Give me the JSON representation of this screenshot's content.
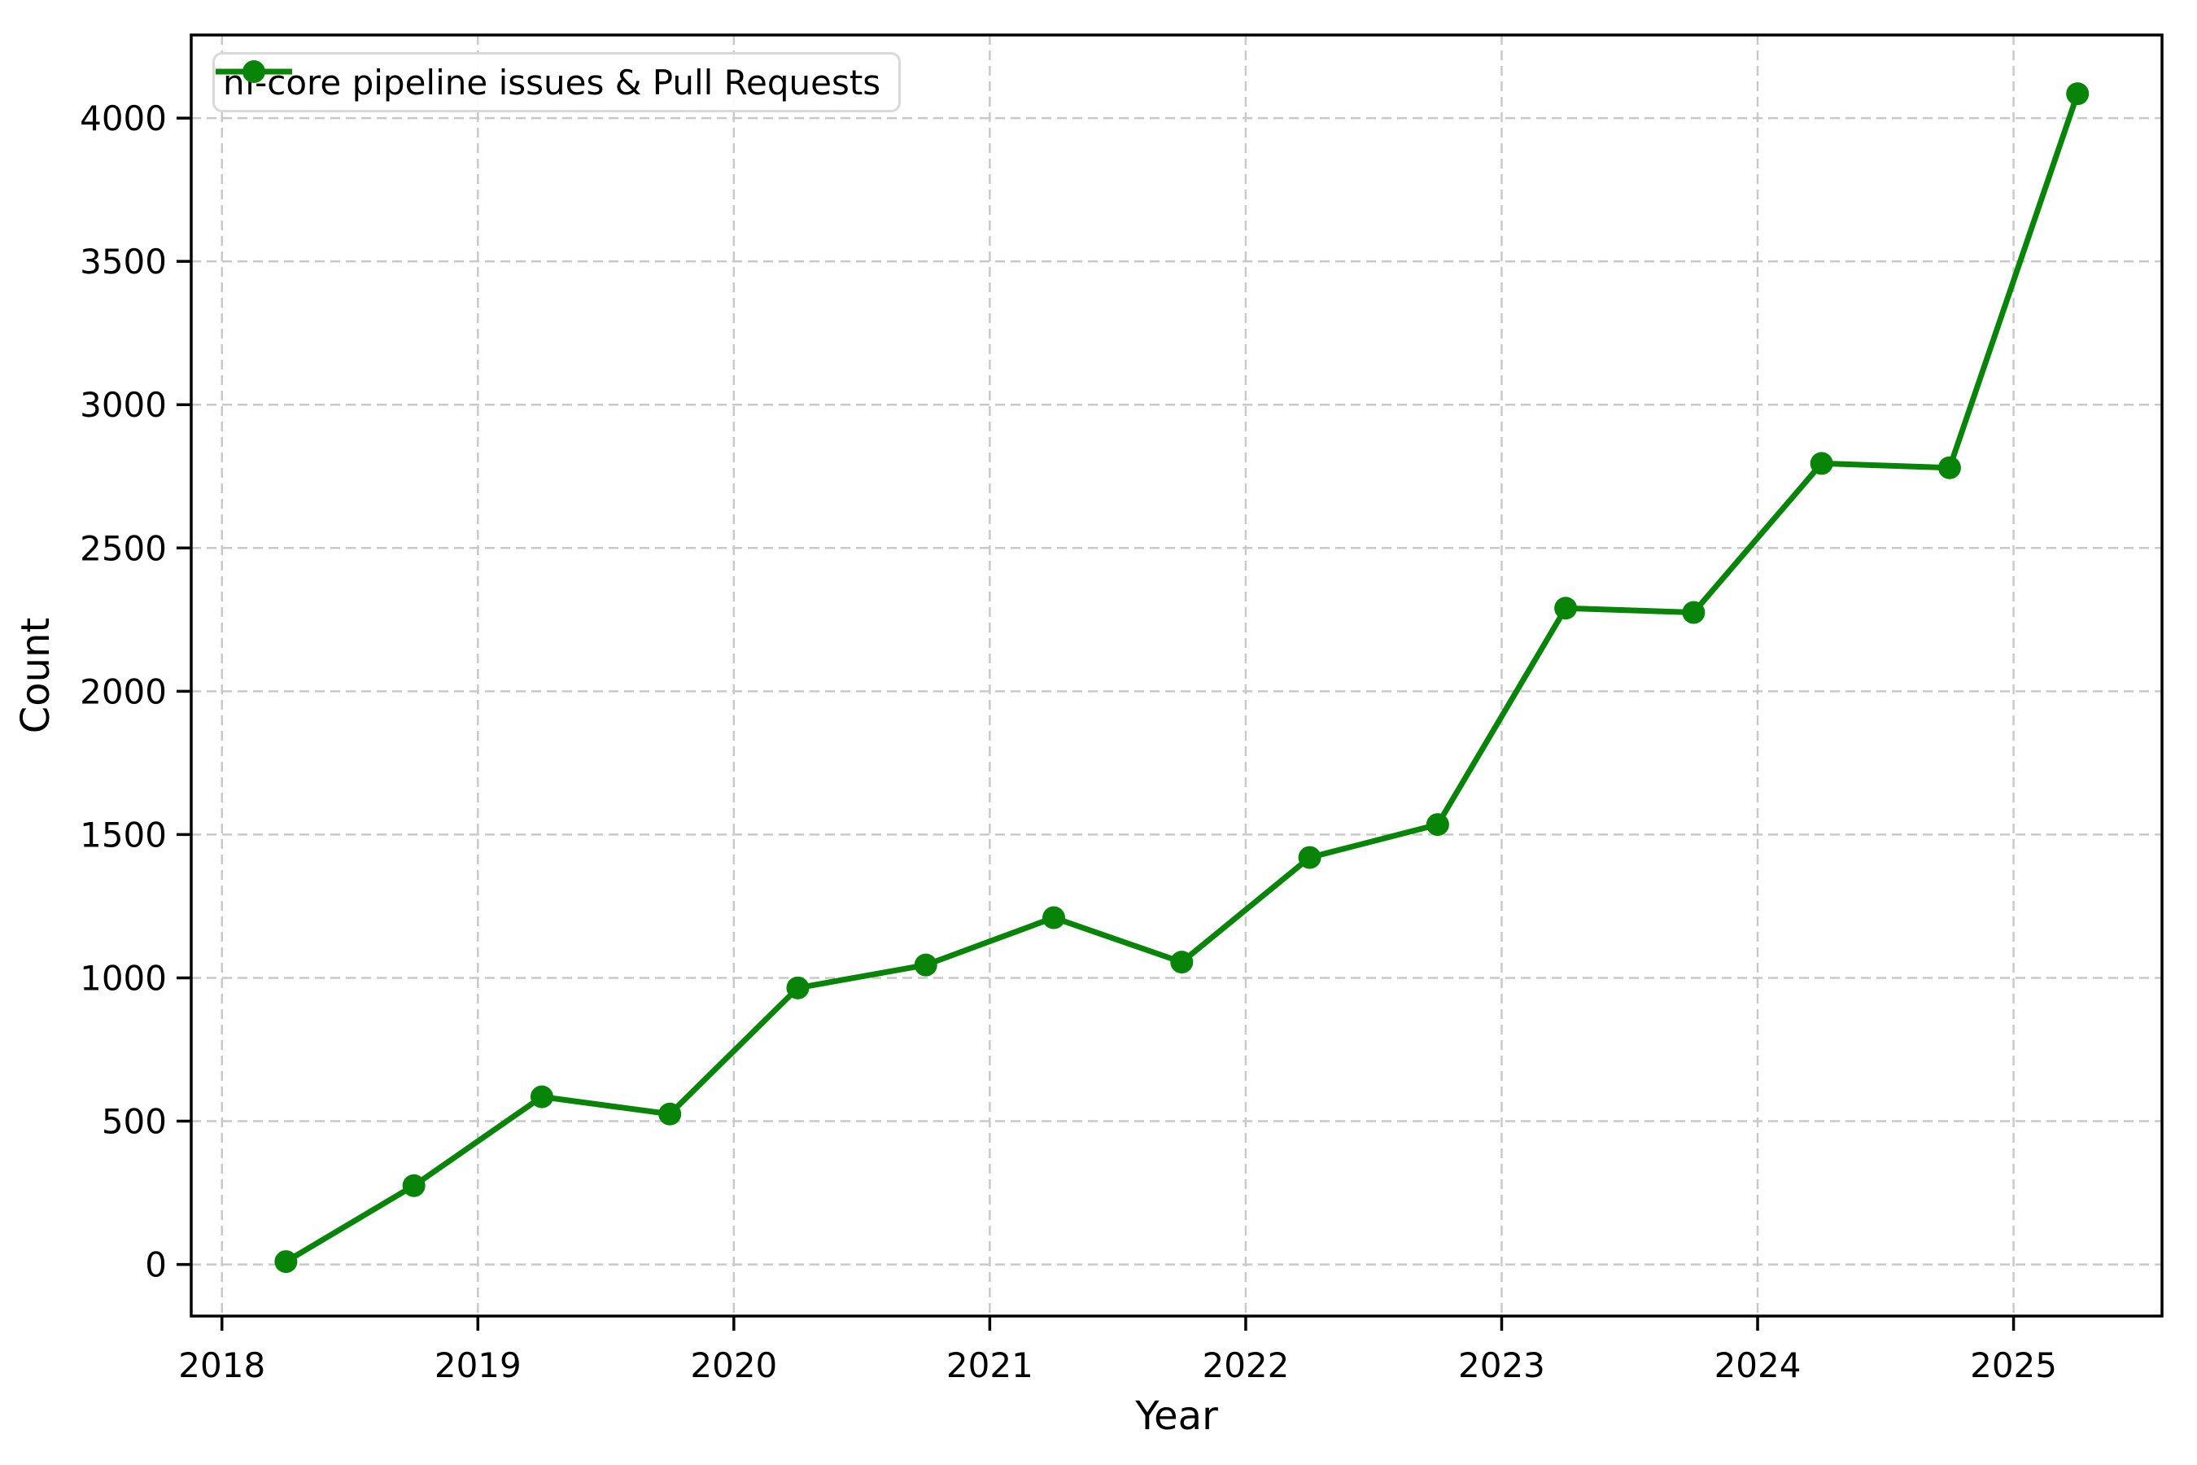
{
  "figure": {
    "background": "#ffffff",
    "spine_color": "#000000",
    "tick_color": "#000000",
    "text_color": "#000000"
  },
  "chart_data": {
    "type": "line",
    "title": "",
    "xlabel": "Year",
    "ylabel": "Count",
    "legend": {
      "position": "upper left",
      "label": "nf-core pipeline issues & Pull Requests"
    },
    "grid": {
      "visible": true,
      "style": "dashed",
      "color": "#c9c9c9"
    },
    "xlim": [
      2017.88,
      2025.58
    ],
    "ylim": [
      -180,
      4290
    ],
    "x_ticks": [
      2018,
      2019,
      2020,
      2021,
      2022,
      2023,
      2024,
      2025
    ],
    "y_ticks": [
      0,
      500,
      1000,
      1500,
      2000,
      2500,
      3000,
      3500,
      4000
    ],
    "series": [
      {
        "name": "nf-core pipeline issues & Pull Requests",
        "color": "#088408",
        "marker": "circle",
        "line_width": 7,
        "marker_radius": 14,
        "x": [
          2018.25,
          2018.75,
          2019.25,
          2019.75,
          2020.25,
          2020.75,
          2021.25,
          2021.75,
          2022.25,
          2022.75,
          2023.25,
          2023.75,
          2024.25,
          2024.75,
          2025.25
        ],
        "y": [
          10,
          275,
          585,
          525,
          965,
          1045,
          1210,
          1055,
          1420,
          1535,
          2290,
          2275,
          2795,
          2780,
          4085
        ]
      }
    ]
  }
}
